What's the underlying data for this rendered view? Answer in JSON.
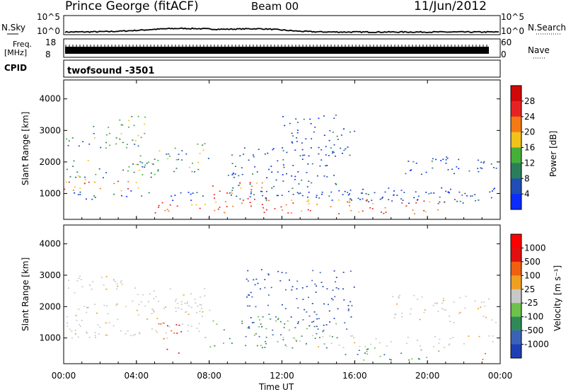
{
  "header": {
    "title": "Prince George (fitACF)",
    "beam": "Beam 00",
    "date": "11/Jun/2012"
  },
  "panels": {
    "nsky_label": "N.Sky",
    "nsky_ticks": [
      "10^5",
      "10^0"
    ],
    "nsearch_label": "N.Search",
    "nsearch_ticks": [
      "10^5",
      "10^0"
    ],
    "freq_label_1": "Freq.",
    "freq_label_2": "[MHz]",
    "freq_ticks": [
      "18",
      "8"
    ],
    "nave_label": "Nave",
    "nave_ticks": [
      "60",
      "0"
    ],
    "cpid_label": "CPID",
    "cpid_value": "twofsound -3501"
  },
  "chart_data": [
    {
      "type": "heatmap",
      "name": "power",
      "ylabel": "Slant Range [km]",
      "yticks": [
        1000,
        2000,
        3000,
        4000
      ],
      "ylim": [
        180,
        4600
      ],
      "xticks": [
        "00:00",
        "04:00",
        "08:00",
        "12:00",
        "16:00",
        "20:00",
        "00:00"
      ],
      "xlim_hours": [
        0,
        24
      ],
      "colorbar": {
        "label": "Power [dB]",
        "ticks": [
          "4",
          "8",
          "12",
          "16",
          "20",
          "24",
          "28"
        ],
        "colors": [
          "#0a2cff",
          "#1f4eb4",
          "#2a7f5a",
          "#44b03a",
          "#f2c21a",
          "#f37a14",
          "#e82222",
          "#d20808"
        ]
      }
    },
    {
      "type": "heatmap",
      "name": "velocity",
      "ylabel": "Slant Range [km]",
      "yticks": [
        1000,
        2000,
        3000,
        4000
      ],
      "ylim": [
        180,
        4600
      ],
      "xticks": [
        "00:00",
        "04:00",
        "08:00",
        "12:00",
        "16:00",
        "20:00",
        "00:00"
      ],
      "xlabel": "Time UT",
      "colorbar": {
        "label": "Velocity [m s⁻¹]",
        "ticks": [
          "1000",
          "500",
          "100",
          "25",
          "-25",
          "-100",
          "-500",
          "-1000"
        ],
        "colors": [
          "#1e3fb4",
          "#3a63b8",
          "#2f8a5a",
          "#6cc24a",
          "#c8c8c8",
          "#f0a020",
          "#f06010",
          "#e01010",
          "#ff0000"
        ]
      }
    }
  ]
}
